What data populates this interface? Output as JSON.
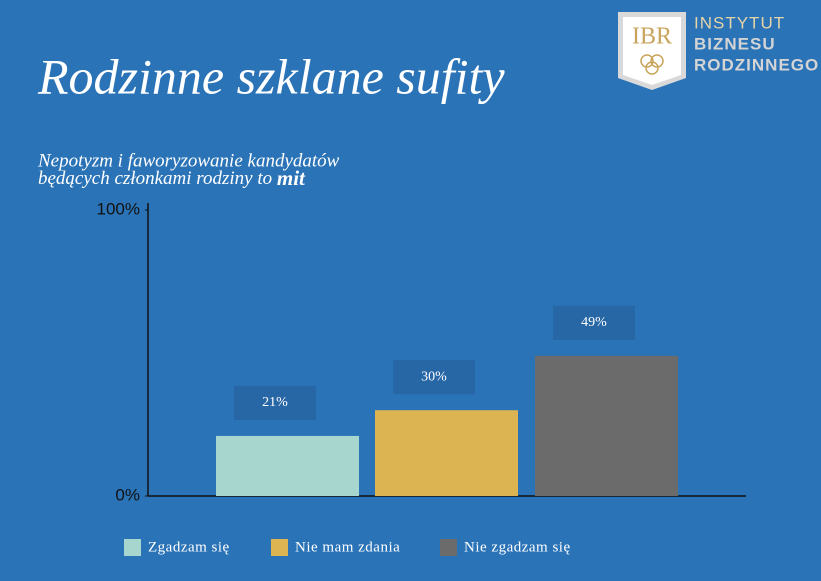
{
  "logo": {
    "mark": "IBR",
    "line1": "INSTYTUT",
    "line2": "BIZNESU",
    "line3": "RODZINNEGO"
  },
  "chart_data": {
    "type": "bar",
    "title": "Rodzinne szklane sufity",
    "subtitle": {
      "line1": "Nepotyzm i faworyzowanie kandydatów",
      "line2": "będących członkami rodziny to",
      "emphasis": "mit"
    },
    "categories": [
      "Zgadzam się",
      "Nie mam zdania",
      "Nie zgadzam się"
    ],
    "values": [
      21,
      30,
      49
    ],
    "value_labels": [
      "21%",
      "30%",
      "49%"
    ],
    "colors": [
      "#a7d6cf",
      "#dcb452",
      "#6b6b6b"
    ],
    "ylim": [
      0,
      100
    ],
    "yticks": [
      {
        "value": 0,
        "label": "0%"
      },
      {
        "value": 100,
        "label": "100%"
      }
    ],
    "legend": "bottom"
  }
}
